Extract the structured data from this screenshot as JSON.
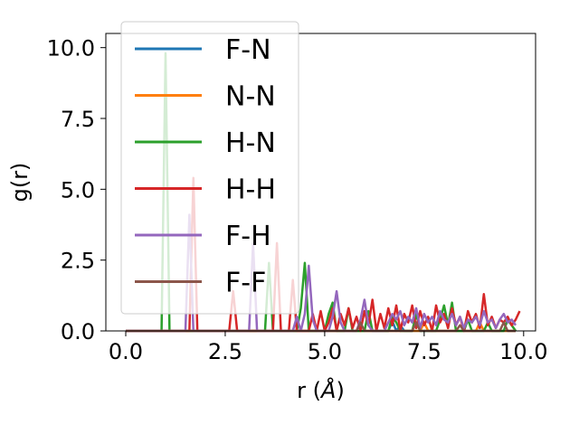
{
  "chart_data": {
    "type": "line",
    "xlabel_text": "r (",
    "xlabel_unit": "Å",
    "xlabel_close": ")",
    "ylabel": "g(r)",
    "xlim": [
      -0.5,
      10.3
    ],
    "ylim": [
      0.0,
      10.5
    ],
    "xticks": [
      0.0,
      2.5,
      5.0,
      7.5,
      10.0
    ],
    "xtick_labels": [
      "0.0",
      "2.5",
      "5.0",
      "7.5",
      "10.0"
    ],
    "yticks": [
      0.0,
      2.5,
      5.0,
      7.5,
      10.0
    ],
    "ytick_labels": [
      "0.0",
      "2.5",
      "5.0",
      "7.5",
      "10.0"
    ],
    "legend_position": "upper-left",
    "series": [
      {
        "name": "F-N",
        "color": "#1f77b4",
        "x": [
          0.0,
          4.5,
          6.6,
          6.7,
          6.8,
          6.9,
          7.0,
          9.5,
          9.8
        ],
        "y": [
          0.0,
          0.0,
          0.0,
          0.35,
          0.0,
          0.2,
          0.0,
          0.0,
          0.0
        ]
      },
      {
        "name": "N-N",
        "color": "#ff7f0e",
        "x": [
          0.0,
          7.4,
          7.5,
          7.6,
          8.8,
          8.9,
          9.0,
          9.8
        ],
        "y": [
          0.0,
          0.0,
          0.3,
          0.0,
          0.0,
          0.3,
          0.0,
          0.0
        ]
      },
      {
        "name": "H-N",
        "color": "#2ca02c",
        "x": [
          0.0,
          0.9,
          1.0,
          1.1,
          3.4,
          3.5,
          3.6,
          3.7,
          4.3,
          4.4,
          4.5,
          4.6,
          5.0,
          5.1,
          5.2,
          5.3,
          5.5,
          5.6,
          5.7,
          6.0,
          6.1,
          6.2,
          6.6,
          6.7,
          6.8,
          6.9,
          7.2,
          7.3,
          7.4,
          7.8,
          7.9,
          8.0,
          8.1,
          8.2,
          8.3,
          8.5,
          8.6,
          8.7,
          9.0,
          9.1,
          9.2,
          9.5,
          9.6,
          9.8
        ],
        "y": [
          0.0,
          0.0,
          9.8,
          0.0,
          0.0,
          0.0,
          2.4,
          0.0,
          0.0,
          0.8,
          2.4,
          0.0,
          0.0,
          0.6,
          1.0,
          0.0,
          0.0,
          0.8,
          0.0,
          0.0,
          0.7,
          0.0,
          0.0,
          0.5,
          0.3,
          0.0,
          0.0,
          0.6,
          0.0,
          0.0,
          0.4,
          0.9,
          0.2,
          1.0,
          0.0,
          0.0,
          0.4,
          0.0,
          0.0,
          0.3,
          0.0,
          0.0,
          0.4,
          0.0
        ]
      },
      {
        "name": "H-H",
        "color": "#d62728",
        "x": [
          0.0,
          1.6,
          1.7,
          1.8,
          2.6,
          2.7,
          2.8,
          3.7,
          3.8,
          3.9,
          4.1,
          4.2,
          4.3,
          4.6,
          4.7,
          4.8,
          4.9,
          5.0,
          5.1,
          5.2,
          5.3,
          5.4,
          5.5,
          5.6,
          5.7,
          5.8,
          5.9,
          6.0,
          6.1,
          6.2,
          6.3,
          6.4,
          6.5,
          6.6,
          6.7,
          6.8,
          6.9,
          7.0,
          7.1,
          7.2,
          7.3,
          7.4,
          7.5,
          7.6,
          7.7,
          7.8,
          7.9,
          8.0,
          8.1,
          8.2,
          8.3,
          8.4,
          8.5,
          8.6,
          8.7,
          8.8,
          8.9,
          9.0,
          9.1,
          9.2,
          9.3,
          9.4,
          9.5,
          9.6,
          9.7,
          9.8,
          9.9
        ],
        "y": [
          0.0,
          0.0,
          5.4,
          0.0,
          0.0,
          1.4,
          0.0,
          0.0,
          3.1,
          0.0,
          0.0,
          1.8,
          0.0,
          0.0,
          0.6,
          0.0,
          0.7,
          0.0,
          0.3,
          0.8,
          0.0,
          0.6,
          0.2,
          0.8,
          0.1,
          0.5,
          0.0,
          0.7,
          0.2,
          1.1,
          0.0,
          0.6,
          0.1,
          0.8,
          0.2,
          0.9,
          0.0,
          0.6,
          0.3,
          0.9,
          0.1,
          0.7,
          0.2,
          0.5,
          0.0,
          0.9,
          0.3,
          0.6,
          0.1,
          0.8,
          0.2,
          0.5,
          0.0,
          0.7,
          0.3,
          0.6,
          0.1,
          1.3,
          0.2,
          0.5,
          0.1,
          0.4,
          0.3,
          0.5,
          0.2,
          0.4,
          0.7
        ]
      },
      {
        "name": "F-H",
        "color": "#9467bd",
        "x": [
          0.0,
          1.5,
          1.6,
          1.7,
          3.1,
          3.2,
          3.3,
          4.2,
          4.3,
          4.4,
          4.5,
          4.6,
          4.7,
          4.8,
          5.1,
          5.2,
          5.3,
          5.4,
          5.5,
          5.8,
          5.9,
          6.0,
          6.1,
          6.2,
          6.5,
          6.6,
          6.7,
          6.8,
          6.9,
          7.0,
          7.1,
          7.2,
          7.3,
          7.4,
          7.5,
          7.6,
          7.7,
          7.8,
          7.9,
          8.0,
          8.1,
          8.2,
          8.3,
          8.4,
          8.5,
          8.6,
          8.7,
          8.8,
          8.9,
          9.0,
          9.1,
          9.2,
          9.3,
          9.4,
          9.5,
          9.6,
          9.7,
          9.8
        ],
        "y": [
          0.0,
          0.0,
          4.1,
          0.0,
          0.0,
          3.1,
          0.0,
          0.0,
          0.5,
          0.0,
          0.6,
          2.3,
          0.4,
          0.0,
          0.0,
          0.5,
          1.4,
          0.3,
          0.0,
          0.0,
          0.4,
          1.1,
          0.2,
          0.0,
          0.0,
          0.3,
          0.6,
          0.4,
          0.7,
          0.2,
          0.5,
          0.3,
          0.8,
          0.1,
          0.6,
          0.3,
          0.5,
          0.2,
          0.7,
          0.4,
          0.3,
          0.6,
          0.2,
          0.5,
          0.1,
          0.4,
          0.3,
          0.5,
          0.2,
          0.7,
          0.3,
          0.4,
          0.1,
          0.4,
          0.6,
          0.3,
          0.4,
          0.2
        ]
      },
      {
        "name": "F-F",
        "color": "#8c564b",
        "x": [
          0.0,
          5.8,
          5.9,
          6.0,
          7.2,
          7.3,
          7.4,
          8.3,
          8.4,
          8.5,
          9.4,
          9.5,
          9.6,
          9.8
        ],
        "y": [
          0.0,
          0.0,
          0.3,
          0.0,
          0.0,
          0.3,
          0.0,
          0.0,
          0.2,
          0.0,
          0.0,
          0.3,
          0.0,
          0.0
        ]
      }
    ]
  }
}
